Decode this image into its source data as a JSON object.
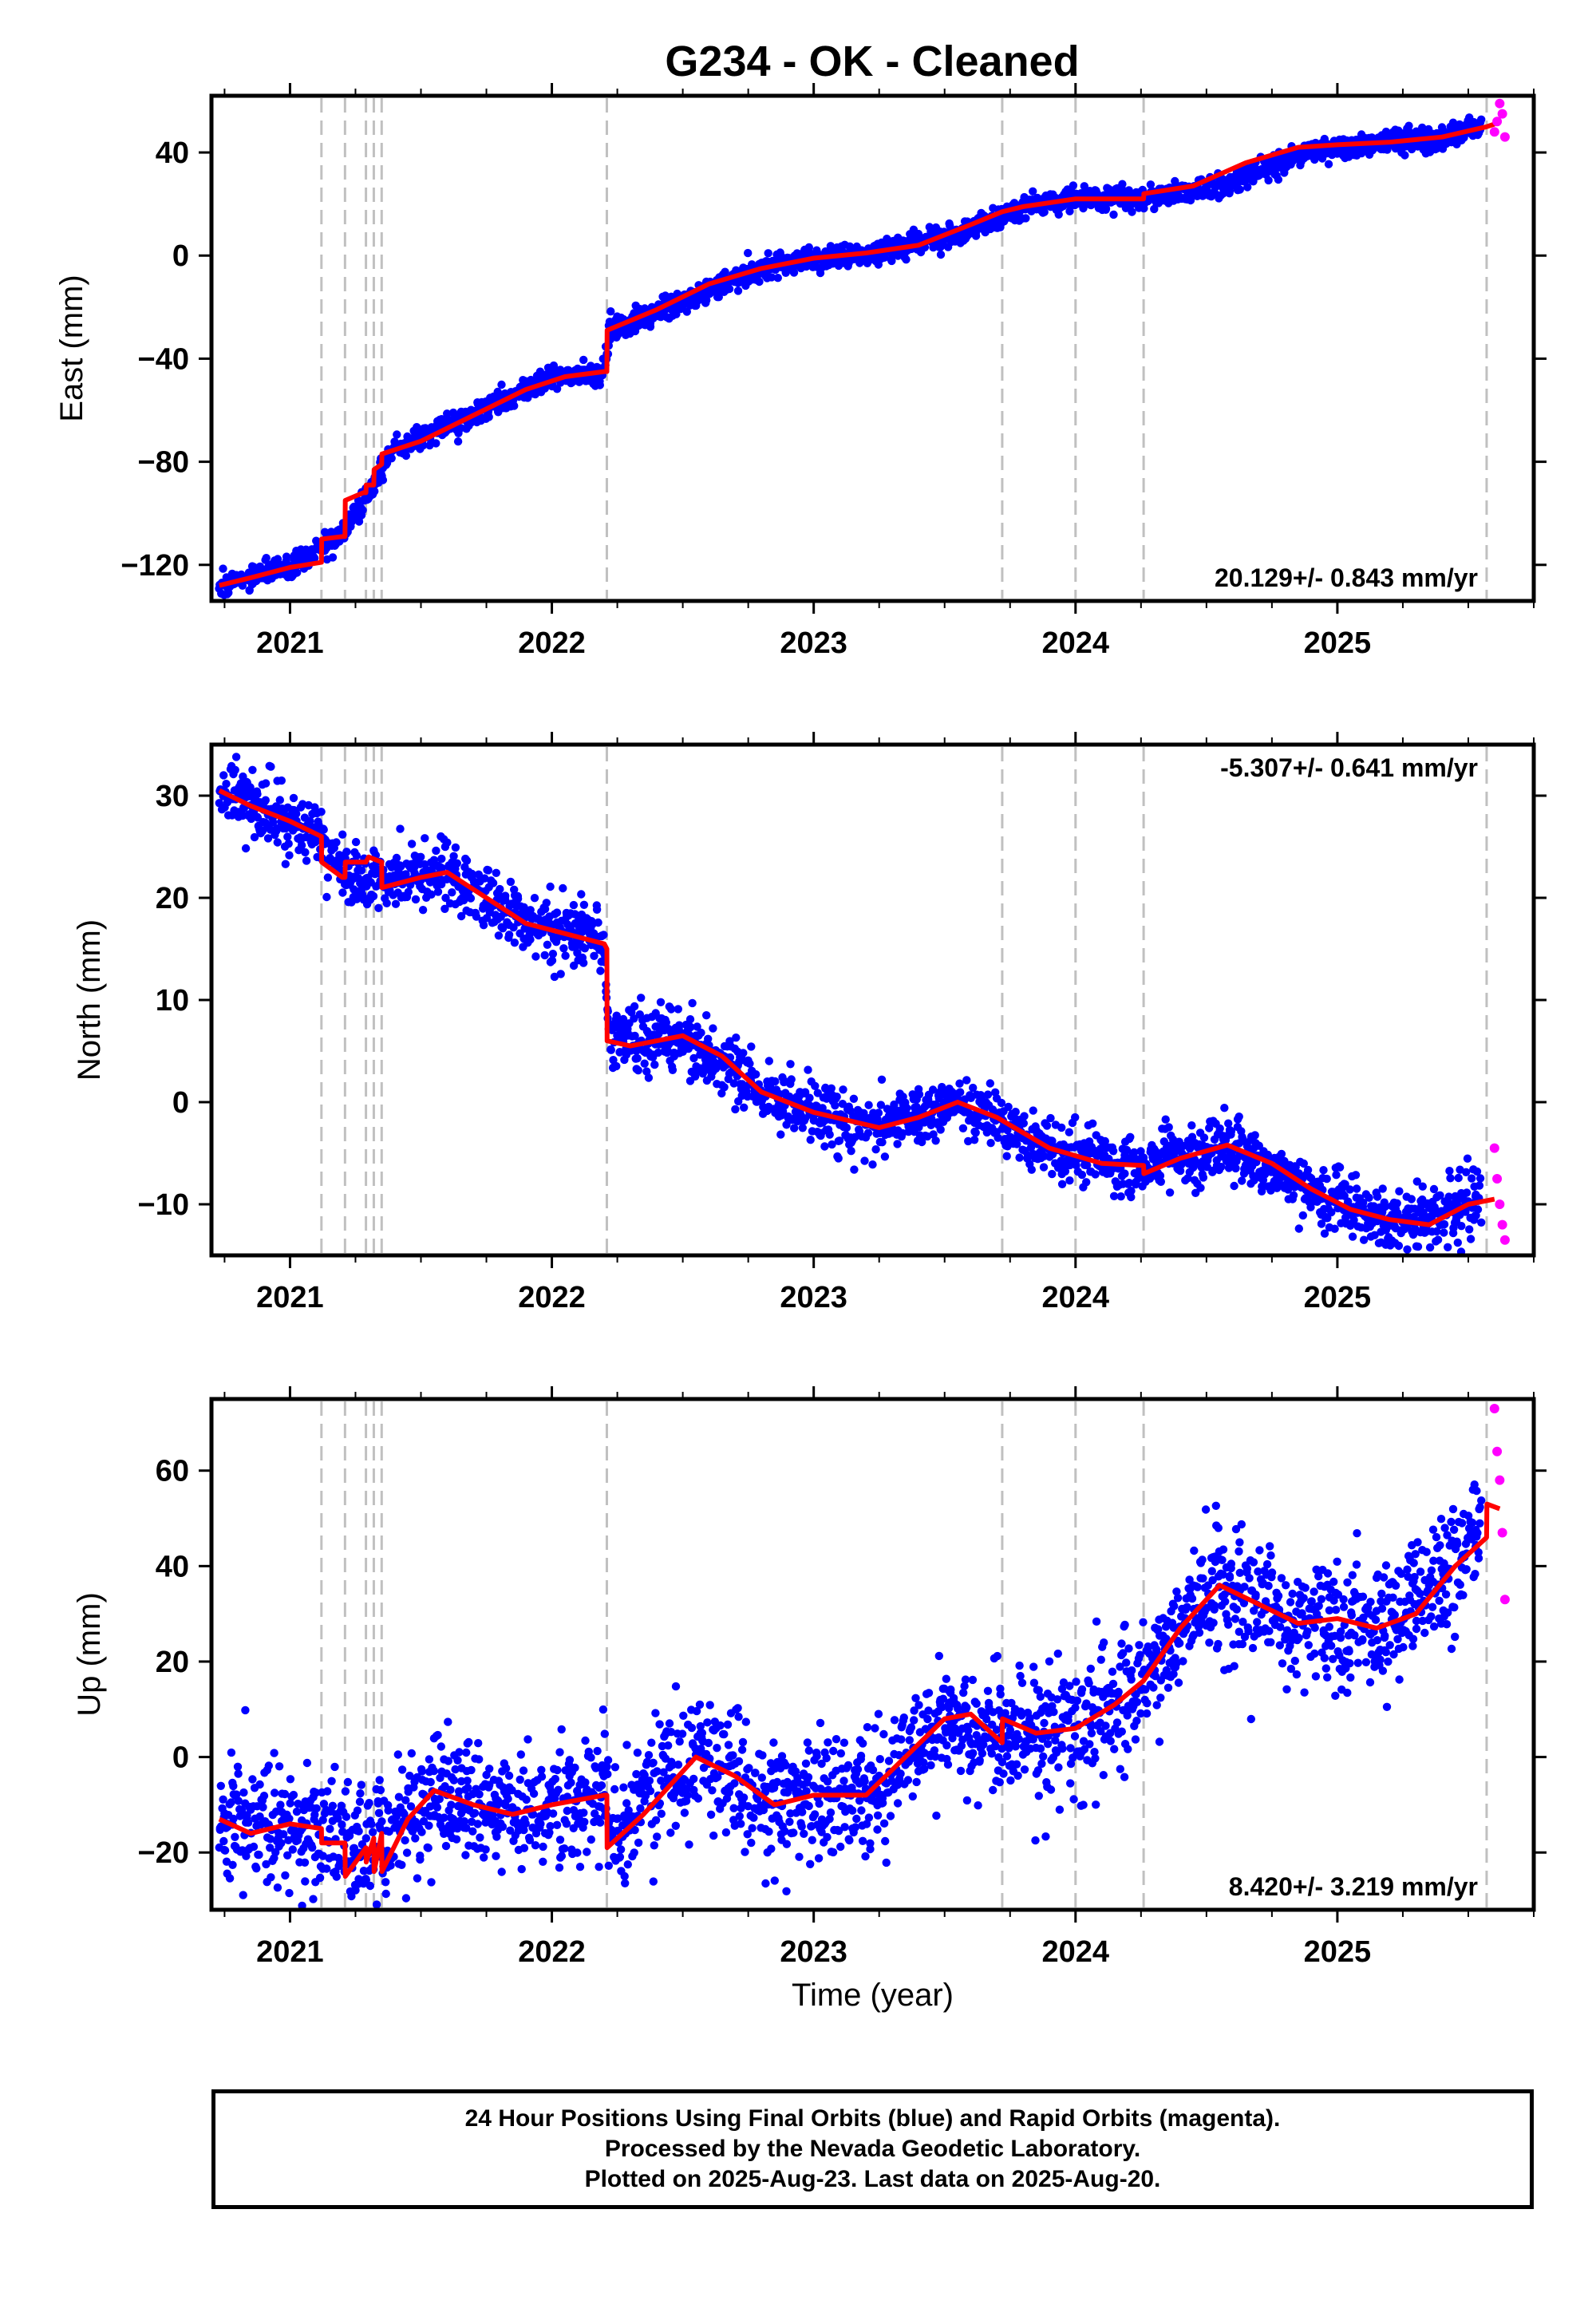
{
  "title": "G234  - OK - Cleaned",
  "footer": {
    "line1": "24 Hour Positions Using Final Orbits (blue) and Rapid Orbits (magenta).",
    "line2": "Processed by the Nevada Geodetic Laboratory.",
    "line3": "Plotted on 2025-Aug-23. Last data on 2025-Aug-20."
  },
  "colors": {
    "final_orbits": "#0000ff",
    "rapid_orbits": "#ff00ff",
    "model_fit": "#ff0000",
    "event_lines": "#c0c0c0"
  },
  "chart_data": [
    {
      "type": "scatter",
      "panel": "east",
      "ylabel": "East (mm)",
      "xlabel": "",
      "xlim": [
        2020.7,
        2025.75
      ],
      "ylim": [
        -134,
        62
      ],
      "xticks": [
        2021,
        2022,
        2023,
        2024,
        2025
      ],
      "yticks": [
        -120,
        -80,
        -40,
        0,
        40
      ],
      "rate_label": "20.129+/- 0.843 mm/yr",
      "rate_position": "bottom-right",
      "event_lines": [
        2021.12,
        2021.21,
        2021.29,
        2021.32,
        2021.35,
        2022.21,
        2023.72,
        2024.0,
        2024.26,
        2025.57
      ],
      "model_fit": {
        "name": "model",
        "x": [
          2020.73,
          2020.85,
          2021.0,
          2021.12,
          2021.121,
          2021.2,
          2021.21,
          2021.211,
          2021.28,
          2021.29,
          2021.291,
          2021.32,
          2021.321,
          2021.35,
          2021.351,
          2021.5,
          2021.7,
          2021.9,
          2022.05,
          2022.2,
          2022.21,
          2022.211,
          2022.4,
          2022.6,
          2022.8,
          2023.0,
          2023.2,
          2023.4,
          2023.6,
          2023.72,
          2023.8,
          2024.0,
          2024.15,
          2024.26,
          2024.261,
          2024.45,
          2024.65,
          2024.85,
          2025.0,
          2025.2,
          2025.4,
          2025.57,
          2025.6
        ],
        "y": [
          -128,
          -125,
          -121,
          -119,
          -110,
          -109,
          -109,
          -95,
          -92,
          -92,
          -89,
          -89,
          -83,
          -81,
          -77,
          -72,
          -62,
          -52,
          -47,
          -45,
          -45,
          -29,
          -21,
          -11,
          -5,
          -1,
          1,
          4,
          12,
          17,
          19,
          22,
          22,
          22,
          24,
          27,
          36,
          42,
          43,
          44,
          46,
          50,
          51
        ]
      },
      "final_orbits_trend": {
        "name": "Final Orbits (blue)",
        "x": [
          2020.73,
          2021.0,
          2021.2,
          2021.4,
          2021.7,
          2022.0,
          2022.2,
          2022.22,
          2022.5,
          2022.8,
          2023.0,
          2023.3,
          2023.6,
          2023.8,
          2024.0,
          2024.3,
          2024.6,
          2024.9,
          2025.2,
          2025.4,
          2025.55
        ],
        "y": [
          -128,
          -121,
          -108,
          -75,
          -62,
          -47,
          -45,
          -29,
          -18,
          -5,
          -1,
          2,
          10,
          19,
          22,
          23,
          28,
          41,
          44,
          45,
          51
        ],
        "scatter_mm": 2.2
      },
      "rapid_orbits": {
        "name": "Rapid Orbits (magenta)",
        "x": [
          2025.6,
          2025.61,
          2025.62,
          2025.63,
          2025.64
        ],
        "y": [
          48,
          52,
          59,
          55,
          46
        ]
      }
    },
    {
      "type": "scatter",
      "panel": "north",
      "ylabel": "North (mm)",
      "xlabel": "",
      "xlim": [
        2020.7,
        2025.75
      ],
      "ylim": [
        -15,
        35
      ],
      "xticks": [
        2021,
        2022,
        2023,
        2024,
        2025
      ],
      "yticks": [
        -10,
        0,
        10,
        20,
        30
      ],
      "rate_label": "-5.307+/- 0.641 mm/yr",
      "rate_position": "top-right",
      "event_lines": [
        2021.12,
        2021.21,
        2021.29,
        2021.32,
        2021.35,
        2022.21,
        2023.72,
        2024.0,
        2024.26,
        2025.57
      ],
      "model_fit": {
        "name": "model",
        "x": [
          2020.73,
          2020.85,
          2021.0,
          2021.12,
          2021.121,
          2021.2,
          2021.21,
          2021.211,
          2021.29,
          2021.3,
          2021.35,
          2021.351,
          2021.5,
          2021.6,
          2021.75,
          2021.9,
          2022.05,
          2022.2,
          2022.21,
          2022.211,
          2022.3,
          2022.5,
          2022.65,
          2022.8,
          2023.0,
          2023.25,
          2023.4,
          2023.55,
          2023.7,
          2023.9,
          2024.1,
          2024.26,
          2024.261,
          2024.4,
          2024.58,
          2024.75,
          2024.9,
          2025.05,
          2025.2,
          2025.35,
          2025.5,
          2025.6
        ],
        "y": [
          30.5,
          29,
          27.5,
          26,
          23.5,
          22,
          22,
          23.5,
          23.5,
          24,
          23.5,
          21,
          22,
          22.5,
          20,
          17.5,
          16.5,
          15.5,
          15,
          6,
          5.5,
          6.5,
          4.5,
          1,
          -1,
          -2.5,
          -1.5,
          0,
          -1.5,
          -4.5,
          -6,
          -6.2,
          -7,
          -5.5,
          -4.2,
          -6,
          -8.5,
          -10.5,
          -11.5,
          -12,
          -10,
          -9.5
        ]
      },
      "final_orbits_trend": {
        "name": "Final Orbits (blue)",
        "x": [
          2020.73,
          2021.0,
          2021.12,
          2021.2,
          2021.35,
          2021.6,
          2021.9,
          2022.2,
          2022.22,
          2022.5,
          2022.8,
          2023.0,
          2023.25,
          2023.55,
          2023.9,
          2024.26,
          2024.58,
          2024.9,
          2025.2,
          2025.55
        ],
        "y": [
          30.5,
          27.5,
          26,
          22.5,
          22,
          22.5,
          17.5,
          15.5,
          6,
          6.5,
          1,
          -1,
          -2.5,
          0,
          -4.5,
          -6.5,
          -4.2,
          -8.5,
          -12,
          -9.5
        ],
        "scatter_mm": 1.5
      },
      "rapid_orbits": {
        "name": "Rapid Orbits (magenta)",
        "x": [
          2025.6,
          2025.61,
          2025.62,
          2025.63,
          2025.64
        ],
        "y": [
          -4.5,
          -7.5,
          -10,
          -12,
          -13.5
        ]
      }
    },
    {
      "type": "scatter",
      "panel": "up",
      "ylabel": "Up (mm)",
      "xlabel": "Time (year)",
      "xlim": [
        2020.7,
        2025.75
      ],
      "ylim": [
        -32,
        75
      ],
      "xticks": [
        2021,
        2022,
        2023,
        2024,
        2025
      ],
      "yticks": [
        -20,
        0,
        20,
        40,
        60
      ],
      "rate_label": "8.420+/- 3.219 mm/yr",
      "rate_position": "bottom-right",
      "event_lines": [
        2021.12,
        2021.21,
        2021.29,
        2021.32,
        2021.35,
        2022.21,
        2023.72,
        2024.0,
        2024.26,
        2025.57
      ],
      "model_fit": {
        "name": "model",
        "x": [
          2020.73,
          2020.85,
          2021.0,
          2021.12,
          2021.121,
          2021.21,
          2021.211,
          2021.29,
          2021.291,
          2021.32,
          2021.321,
          2021.35,
          2021.351,
          2021.45,
          2021.55,
          2021.7,
          2021.85,
          2022.0,
          2022.2,
          2022.21,
          2022.211,
          2022.35,
          2022.55,
          2022.7,
          2022.85,
          2023.0,
          2023.2,
          2023.35,
          2023.5,
          2023.6,
          2023.72,
          2023.721,
          2023.85,
          2024.0,
          2024.15,
          2024.26,
          2024.4,
          2024.55,
          2024.7,
          2024.85,
          2025.0,
          2025.15,
          2025.3,
          2025.45,
          2025.57,
          2025.571,
          2025.62
        ],
        "y": [
          -13,
          -16,
          -14,
          -15,
          -18,
          -18,
          -25,
          -19,
          -22,
          -17,
          -24,
          -16,
          -24,
          -13,
          -7,
          -10,
          -12,
          -10,
          -8,
          -8,
          -19,
          -12,
          0,
          -4,
          -10,
          -8,
          -8,
          0,
          8,
          9,
          3,
          8,
          5,
          6,
          11,
          16,
          27,
          36,
          32,
          28,
          29,
          27,
          30,
          40,
          46,
          53,
          52
        ]
      },
      "final_orbits_trend": {
        "name": "Final Orbits (blue)",
        "x": [
          2020.73,
          2021.0,
          2021.2,
          2021.35,
          2021.55,
          2021.85,
          2022.2,
          2022.25,
          2022.55,
          2022.85,
          2023.2,
          2023.5,
          2023.72,
          2024.0,
          2024.26,
          2024.55,
          2024.85,
          2025.15,
          2025.45,
          2025.55
        ],
        "y": [
          -14,
          -14,
          -18,
          -18,
          -8,
          -12,
          -8,
          -16,
          2,
          -10,
          -8,
          8,
          5,
          6,
          16,
          36,
          28,
          27,
          40,
          48
        ],
        "scatter_mm": 6.5
      },
      "rapid_orbits": {
        "name": "Rapid Orbits (magenta)",
        "x": [
          2025.6,
          2025.61,
          2025.62,
          2025.63,
          2025.64
        ],
        "y": [
          73,
          64,
          58,
          47,
          33
        ]
      }
    }
  ]
}
